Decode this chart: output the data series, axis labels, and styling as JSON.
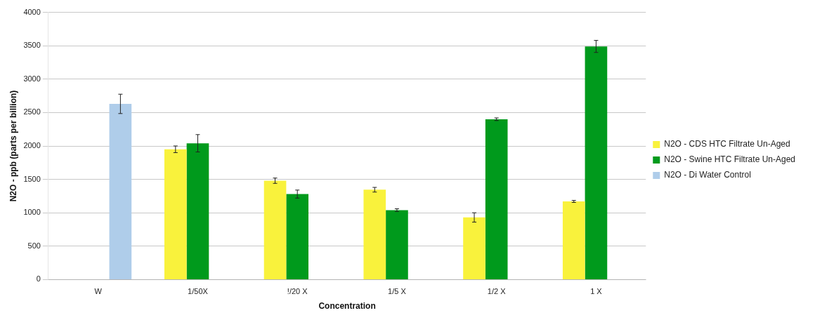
{
  "chart_data": {
    "type": "bar",
    "xlabel": "Concentration",
    "ylabel": "N2O - ppb (parts per billion)",
    "categories": [
      "W",
      "1/50X",
      "!/20 X",
      "1/5 X",
      "1/2 X",
      "1 X"
    ],
    "series": [
      {
        "name": "N2O - CDS HTC Filtrate Un-Aged",
        "color": "#f9f23c",
        "values": [
          null,
          1950,
          1480,
          1345,
          930,
          1170
        ],
        "errors": [
          null,
          50,
          40,
          35,
          70,
          15
        ]
      },
      {
        "name": "N2O - Swine HTC Filtrate Un-Aged",
        "color": "#009a1c",
        "values": [
          null,
          2040,
          1280,
          1040,
          2400,
          3490
        ],
        "errors": [
          null,
          130,
          60,
          20,
          20,
          90
        ]
      },
      {
        "name": "N2O - Di Water Control",
        "color": "#afcdea",
        "values": [
          2630,
          null,
          null,
          null,
          null,
          null
        ],
        "errors": [
          145,
          null,
          null,
          null,
          null,
          null
        ]
      }
    ],
    "ylim": [
      0,
      4000
    ],
    "yticks": [
      0,
      500,
      1000,
      1500,
      2000,
      2500,
      3000,
      3500,
      4000
    ],
    "grid": "y",
    "legend": "right"
  }
}
